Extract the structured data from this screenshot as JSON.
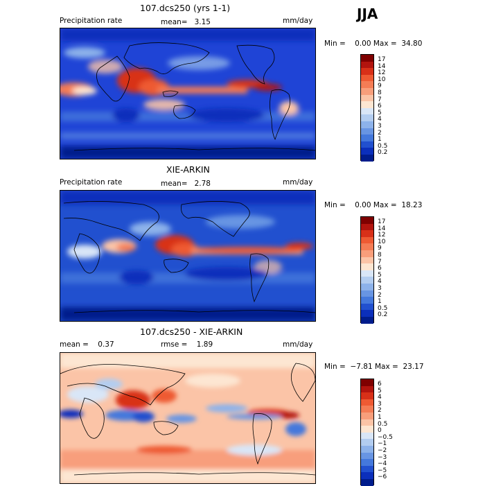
{
  "season": "JJA",
  "panels": [
    {
      "title": "107.dcs250 (yrs 1-1)",
      "left_label": "Precipitation rate",
      "mid_label": "mean=   3.15",
      "units": "mm/day",
      "minmax": "Min =    0.00 Max =  34.80",
      "colorbar": {
        "labels": [
          "17",
          "14",
          "12",
          "10",
          "9",
          "8",
          "7",
          "6",
          "5",
          "4",
          "3",
          "2",
          "1",
          "0.5",
          "0.2"
        ],
        "colors": [
          "#7f0000",
          "#b2140e",
          "#d83018",
          "#ee5a33",
          "#f47c55",
          "#f89e7b",
          "#fbc4a7",
          "#fde6d2",
          "#d9e6f7",
          "#b3cdf0",
          "#8db2ea",
          "#6895e3",
          "#4478dc",
          "#2150cf",
          "#0b2fbb",
          "#001c8c"
        ]
      }
    },
    {
      "title": "XIE-ARKIN",
      "left_label": "Precipitation rate",
      "mid_label": "mean=   2.78",
      "units": "mm/day",
      "minmax": "Min =    0.00 Max =  18.23",
      "colorbar": {
        "labels": [
          "17",
          "14",
          "12",
          "10",
          "9",
          "8",
          "7",
          "6",
          "5",
          "4",
          "3",
          "2",
          "1",
          "0.5",
          "0.2"
        ],
        "colors": [
          "#7f0000",
          "#b2140e",
          "#d83018",
          "#ee5a33",
          "#f47c55",
          "#f89e7b",
          "#fbc4a7",
          "#fde6d2",
          "#d9e6f7",
          "#b3cdf0",
          "#8db2ea",
          "#6895e3",
          "#4478dc",
          "#2150cf",
          "#0b2fbb",
          "#001c8c"
        ]
      }
    },
    {
      "title": "107.dcs250 - XIE-ARKIN",
      "left_label": "mean =    0.37",
      "mid_label": "rmse =    1.89",
      "units": "mm/day",
      "minmax": "Min =  −7.81 Max =  23.17",
      "colorbar": {
        "labels": [
          "6",
          "5",
          "4",
          "3",
          "2",
          "1",
          "0.5",
          "0",
          "−0.5",
          "−1",
          "−2",
          "−3",
          "−4",
          "−5",
          "−6"
        ],
        "colors": [
          "#7f0000",
          "#b2140e",
          "#d83018",
          "#ee5a33",
          "#f47c55",
          "#f89e7b",
          "#fbc4a7",
          "#fde6d2",
          "#d9e6f7",
          "#b3cdf0",
          "#8db2ea",
          "#6895e3",
          "#4478dc",
          "#2150cf",
          "#0b2fbb",
          "#001c8c"
        ]
      }
    }
  ]
}
